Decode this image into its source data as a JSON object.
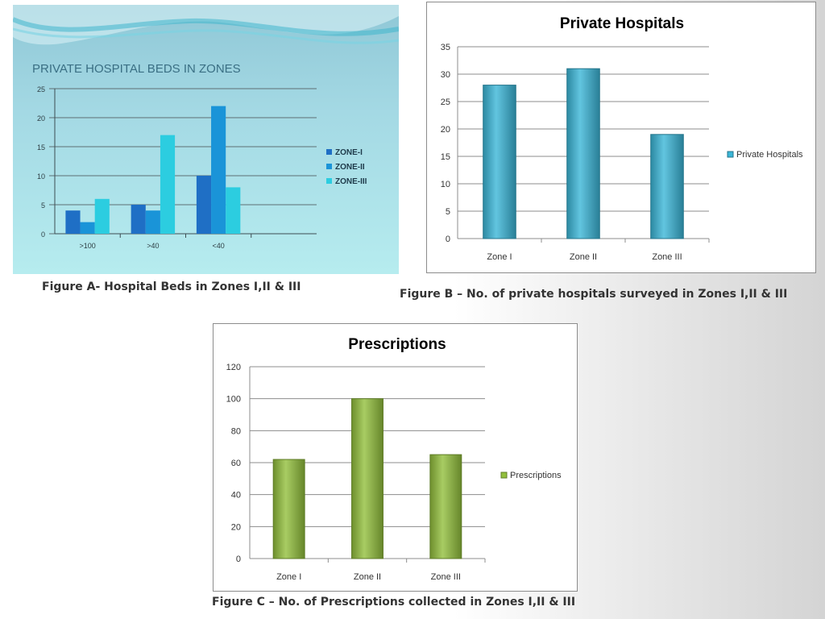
{
  "captions": {
    "a": "Figure A- Hospital Beds in Zones I,II & III",
    "b": "Figure B – No. of private hospitals surveyed in Zones I,II & III",
    "c": "Figure C – No. of Prescriptions collected in Zones I,II & III"
  },
  "chart_data": [
    {
      "type": "bar",
      "title": "PRIVATE HOSPITAL BEDS IN ZONES",
      "xlabel": "",
      "ylabel": "",
      "categories": [
        ">100",
        ">40",
        "<40"
      ],
      "series": [
        {
          "name": "ZONE-I",
          "values": [
            4,
            5,
            10
          ],
          "color": "#1f6fc5"
        },
        {
          "name": "ZONE-II",
          "values": [
            2,
            4,
            22
          ],
          "color": "#1a94d8"
        },
        {
          "name": "ZONE-III",
          "values": [
            6,
            17,
            8
          ],
          "color": "#2ccde0"
        }
      ],
      "ylim": [
        0,
        25
      ],
      "yticks": [
        0,
        5,
        10,
        15,
        20,
        25
      ],
      "grid": true,
      "legend": "right"
    },
    {
      "type": "bar",
      "title": "Private Hospitals",
      "xlabel": "",
      "ylabel": "",
      "categories": [
        "Zone I",
        "Zone II",
        "Zone III"
      ],
      "series": [
        {
          "name": "Private Hospitals",
          "values": [
            28,
            31,
            19
          ],
          "color": "#3bb6d8"
        }
      ],
      "ylim": [
        0,
        35
      ],
      "yticks": [
        0,
        5,
        10,
        15,
        20,
        25,
        30,
        35
      ],
      "grid": true,
      "legend": "right"
    },
    {
      "type": "bar",
      "title": "Prescriptions",
      "xlabel": "",
      "ylabel": "",
      "categories": [
        "Zone I",
        "Zone II",
        "Zone III"
      ],
      "series": [
        {
          "name": "Prescriptions",
          "values": [
            62,
            100,
            65
          ],
          "color": "#92bf3c"
        }
      ],
      "ylim": [
        0,
        120
      ],
      "yticks": [
        0,
        20,
        40,
        60,
        80,
        100,
        120
      ],
      "grid": true,
      "legend": "right"
    }
  ]
}
